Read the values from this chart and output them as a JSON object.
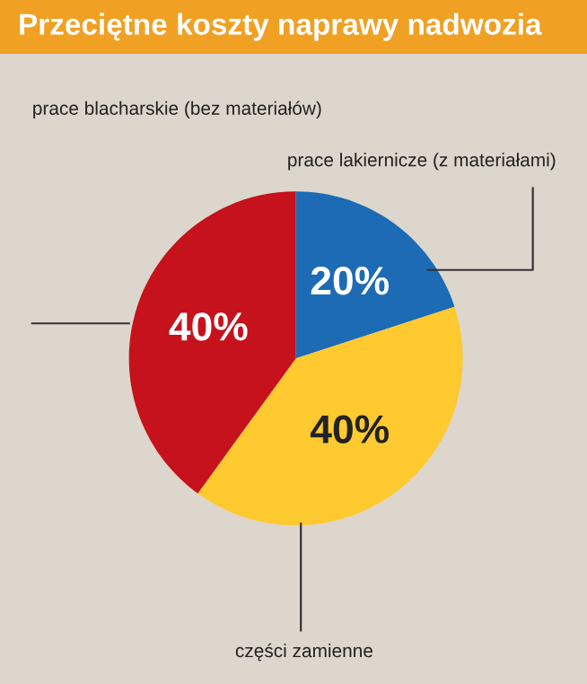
{
  "chart_data": {
    "type": "pie",
    "title": "Przeciętne koszty naprawy nadwozia",
    "categories": [
      "prace lakiernicze (z materiałami)",
      "części zamienne",
      "prace blacharskie (bez materiałów)"
    ],
    "values": [
      20,
      40,
      40
    ],
    "colors": [
      "#1c6bb4",
      "#ffc930",
      "#c5121c"
    ],
    "value_labels": [
      "20%",
      "40%",
      "40%"
    ],
    "legend": false
  }
}
